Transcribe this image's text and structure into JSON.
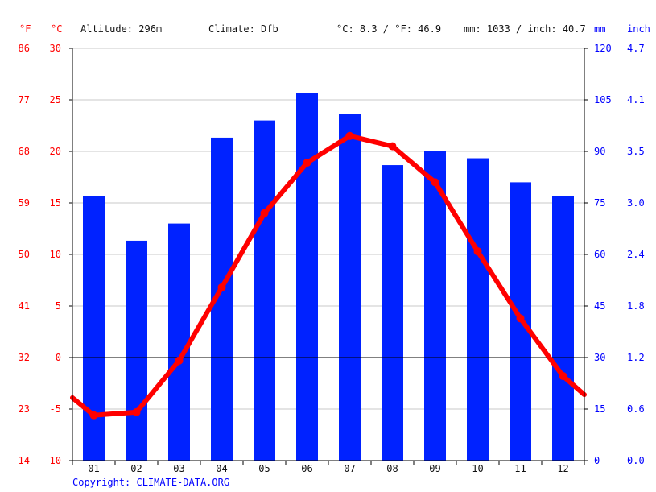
{
  "header": {
    "unit_f": "°F",
    "unit_c": "°C",
    "altitude": "Altitude: 296m",
    "climate": "Climate: Dfb",
    "temp_avg": "°C: 8.3 / °F: 46.9",
    "precip_total": "mm: 1033 / inch: 40.7",
    "unit_mm": "mm",
    "unit_inch": "inch"
  },
  "copyright": "Copyright: CLIMATE-DATA.ORG",
  "colors": {
    "temperature": "#ff0000",
    "precipitation": "#0022ff",
    "axis": "#000000",
    "grid": "#c8c8c8"
  },
  "chart_data": {
    "type": "bar",
    "categories": [
      "01",
      "02",
      "03",
      "04",
      "05",
      "06",
      "07",
      "08",
      "09",
      "10",
      "11",
      "12"
    ],
    "series": [
      {
        "name": "mm",
        "type": "bar",
        "axis": "right",
        "values": [
          77,
          64,
          69,
          94,
          99,
          107,
          101,
          86,
          90,
          88,
          81,
          77
        ]
      },
      {
        "name": "°C",
        "type": "line",
        "axis": "left",
        "values": [
          -5.6,
          -5.3,
          -0.3,
          6.8,
          14.0,
          18.9,
          21.5,
          20.5,
          17.0,
          10.3,
          3.8,
          -1.8
        ],
        "edge_start": -3.9,
        "edge_end": -3.6
      }
    ],
    "left_axis_c": {
      "ticks": [
        30,
        25,
        20,
        15,
        10,
        5,
        0,
        -5,
        -10
      ],
      "ylim": [
        -10,
        30
      ]
    },
    "left_axis_f": {
      "ticks": [
        "86",
        "77",
        "68",
        "59",
        "50",
        "41",
        "32",
        "23",
        "14"
      ]
    },
    "right_axis_mm": {
      "ticks": [
        "120",
        "105",
        "90",
        "75",
        "60",
        "45",
        "30",
        "15",
        "0"
      ],
      "ylim": [
        0,
        120
      ]
    },
    "right_axis_inch": {
      "ticks": [
        "4.7",
        "4.1",
        "3.5",
        "3.0",
        "2.4",
        "1.8",
        "1.2",
        "0.6",
        "0.0"
      ]
    },
    "grid": true
  }
}
